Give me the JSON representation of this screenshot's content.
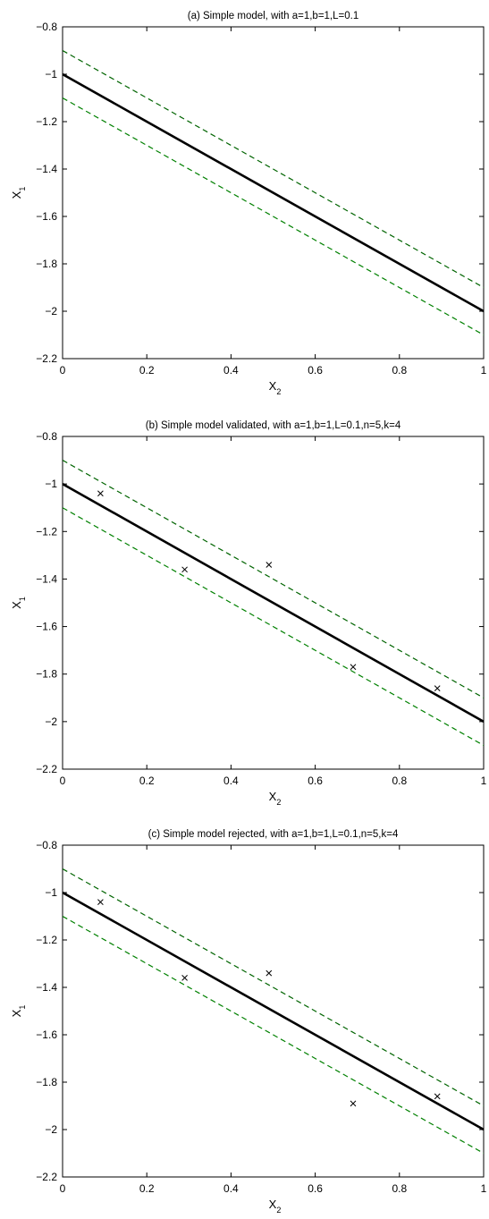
{
  "chart_data": [
    {
      "type": "line",
      "title": "(a) Simple model, with a=1,b=1,L=0.1",
      "xlabel": "X",
      "xlabel_sub": "2",
      "ylabel": "X",
      "ylabel_sub": "1",
      "xlim": [
        0,
        1
      ],
      "ylim": [
        -2.2,
        -0.8
      ],
      "xticks": [
        0,
        0.2,
        0.4,
        0.6,
        0.8,
        1
      ],
      "xtick_labels": [
        "0",
        "0.2",
        "0.4",
        "0.6",
        "0.8",
        "1"
      ],
      "yticks": [
        -2.2,
        -2,
        -1.8,
        -1.6,
        -1.4,
        -1.2,
        -1,
        -0.8
      ],
      "ytick_labels": [
        "−2.2",
        "−2",
        "−1.8",
        "−1.6",
        "−1.4",
        "−1.2",
        "−1",
        "−0.8"
      ],
      "grid": false,
      "series": [
        {
          "style": "solid",
          "color": "#000000",
          "x": [
            0,
            1
          ],
          "y": [
            -1.0,
            -2.0
          ]
        },
        {
          "style": "dashed",
          "color": "#006400",
          "x": [
            0,
            1
          ],
          "y": [
            -0.9,
            -1.9
          ]
        },
        {
          "style": "dashed",
          "color": "#008000",
          "x": [
            0,
            1
          ],
          "y": [
            -1.1,
            -2.1
          ]
        }
      ],
      "points": []
    },
    {
      "type": "line",
      "title": "(b) Simple model validated, with a=1,b=1,L=0.1,n=5,k=4",
      "xlabel": "X",
      "xlabel_sub": "2",
      "ylabel": "X",
      "ylabel_sub": "1",
      "xlim": [
        0,
        1
      ],
      "ylim": [
        -2.2,
        -0.8
      ],
      "xticks": [
        0,
        0.2,
        0.4,
        0.6,
        0.8,
        1
      ],
      "xtick_labels": [
        "0",
        "0.2",
        "0.4",
        "0.6",
        "0.8",
        "1"
      ],
      "yticks": [
        -2.2,
        -2,
        -1.8,
        -1.6,
        -1.4,
        -1.2,
        -1,
        -0.8
      ],
      "ytick_labels": [
        "−2.2",
        "−2",
        "−1.8",
        "−1.6",
        "−1.4",
        "−1.2",
        "−1",
        "−0.8"
      ],
      "grid": false,
      "series": [
        {
          "style": "solid",
          "color": "#000000",
          "x": [
            0,
            1
          ],
          "y": [
            -1.0,
            -2.0
          ]
        },
        {
          "style": "dashed",
          "color": "#006400",
          "x": [
            0,
            1
          ],
          "y": [
            -0.9,
            -1.9
          ]
        },
        {
          "style": "dashed",
          "color": "#008000",
          "x": [
            0,
            1
          ],
          "y": [
            -1.1,
            -2.1
          ]
        }
      ],
      "points": [
        {
          "x": 0.09,
          "y": -1.04
        },
        {
          "x": 0.29,
          "y": -1.36
        },
        {
          "x": 0.49,
          "y": -1.34
        },
        {
          "x": 0.69,
          "y": -1.77
        },
        {
          "x": 0.89,
          "y": -1.86
        }
      ]
    },
    {
      "type": "line",
      "title": "(c) Simple model rejected, with a=1,b=1,L=0.1,n=5,k=4",
      "xlabel": "X",
      "xlabel_sub": "2",
      "ylabel": "X",
      "ylabel_sub": "1",
      "xlim": [
        0,
        1
      ],
      "ylim": [
        -2.2,
        -0.8
      ],
      "xticks": [
        0,
        0.2,
        0.4,
        0.6,
        0.8,
        1
      ],
      "xtick_labels": [
        "0",
        "0.2",
        "0.4",
        "0.6",
        "0.8",
        "1"
      ],
      "yticks": [
        -2.2,
        -2,
        -1.8,
        -1.6,
        -1.4,
        -1.2,
        -1,
        -0.8
      ],
      "ytick_labels": [
        "−2.2",
        "−2",
        "−1.8",
        "−1.6",
        "−1.4",
        "−1.2",
        "−1",
        "−0.8"
      ],
      "grid": false,
      "series": [
        {
          "style": "solid",
          "color": "#000000",
          "x": [
            0,
            1
          ],
          "y": [
            -1.0,
            -2.0
          ]
        },
        {
          "style": "dashed",
          "color": "#006400",
          "x": [
            0,
            1
          ],
          "y": [
            -0.9,
            -1.9
          ]
        },
        {
          "style": "dashed",
          "color": "#008000",
          "x": [
            0,
            1
          ],
          "y": [
            -1.1,
            -2.1
          ]
        }
      ],
      "points": [
        {
          "x": 0.09,
          "y": -1.04
        },
        {
          "x": 0.29,
          "y": -1.36
        },
        {
          "x": 0.49,
          "y": -1.34
        },
        {
          "x": 0.69,
          "y": -1.89
        },
        {
          "x": 0.89,
          "y": -1.86
        }
      ]
    }
  ]
}
